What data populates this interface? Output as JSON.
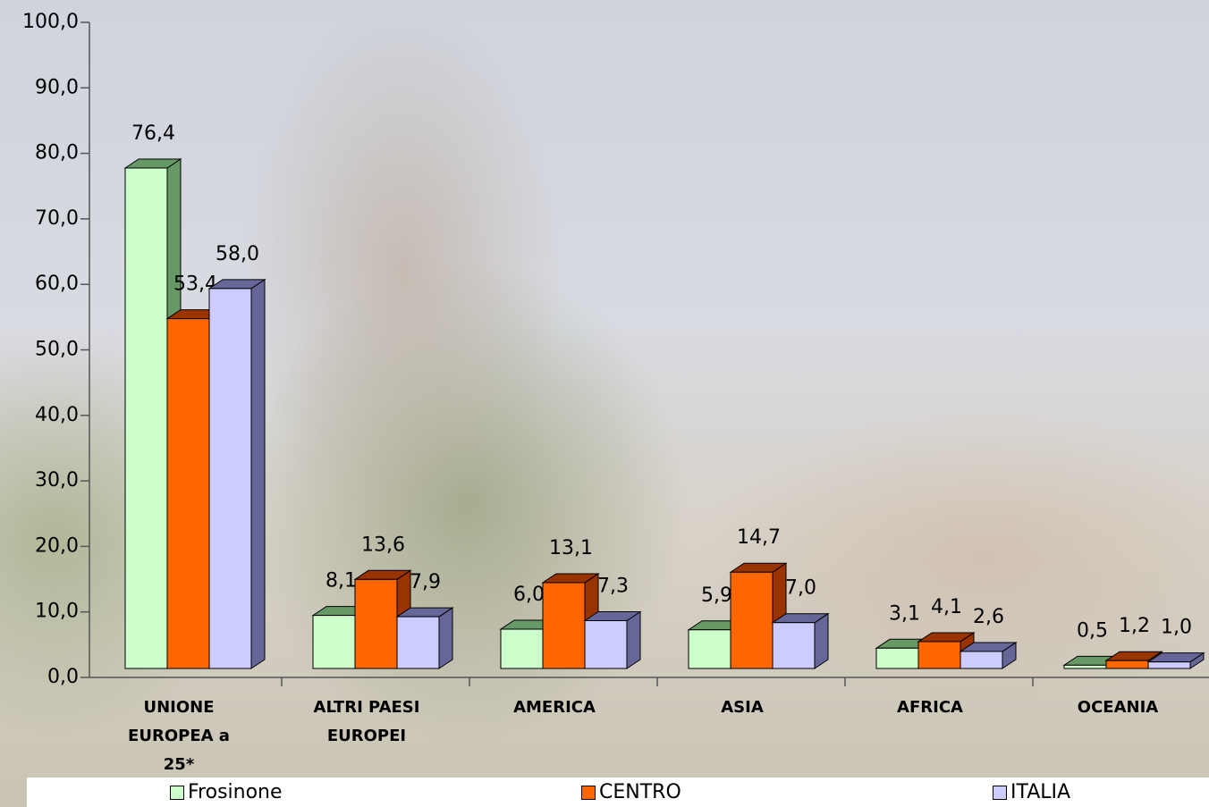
{
  "chart_data": {
    "type": "bar3d",
    "categories": [
      "UNIONE EUROPEA a 25*",
      "ALTRI PAESI EUROPEI",
      "AMERICA",
      "ASIA",
      "AFRICA",
      "OCEANIA"
    ],
    "series": [
      {
        "name": "Frosinone",
        "color": "#ccffcc",
        "side": "#669966",
        "values": [
          76.4,
          8.1,
          6.0,
          5.9,
          3.1,
          0.5
        ],
        "value_labels": [
          "76,4",
          "8,1",
          "6,0",
          "5,9",
          "3,1",
          "0,5"
        ]
      },
      {
        "name": "CENTRO",
        "color": "#ff6600",
        "side": "#993300",
        "values": [
          53.4,
          13.6,
          13.1,
          14.7,
          4.1,
          1.2
        ],
        "value_labels": [
          "53,4",
          "13,6",
          "13,1",
          "14,7",
          "4,1",
          "1,2"
        ]
      },
      {
        "name": "ITALIA",
        "color": "#ccccff",
        "side": "#666699",
        "values": [
          58.0,
          7.9,
          7.3,
          7.0,
          2.6,
          1.0
        ],
        "value_labels": [
          "58,0",
          "7,9",
          "7,3",
          "7,0",
          "2,6",
          "1,0"
        ]
      }
    ],
    "ylim": [
      0,
      100
    ],
    "yticks": [
      {
        "value": 0,
        "label": "0,0"
      },
      {
        "value": 10,
        "label": "10,0"
      },
      {
        "value": 20,
        "label": "20,0"
      },
      {
        "value": 30,
        "label": "30,0"
      },
      {
        "value": 40,
        "label": "40,0"
      },
      {
        "value": 50,
        "label": "50,0"
      },
      {
        "value": 60,
        "label": "60,0"
      },
      {
        "value": 70,
        "label": "70,0"
      },
      {
        "value": 80,
        "label": "80,0"
      },
      {
        "value": 90,
        "label": "90,0"
      },
      {
        "value": 100,
        "label": "100,0"
      }
    ]
  }
}
